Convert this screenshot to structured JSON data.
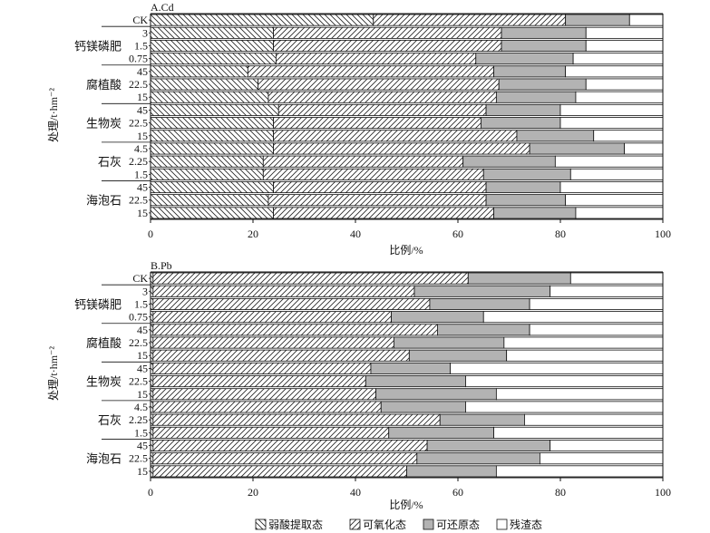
{
  "chart_data": {
    "type": "bar",
    "orientation": "horizontal",
    "stacked": true,
    "x_ticks": [
      0,
      20,
      40,
      60,
      80,
      100
    ],
    "xlim": [
      0,
      100
    ],
    "xlabel": "比例/%",
    "ylabel": "处理/t·hm⁻²",
    "legend_position": "bottom",
    "components": [
      {
        "name": "弱酸提取态",
        "fill": "hatch-back",
        "color": "#ffffff"
      },
      {
        "name": "可氧化态",
        "fill": "hatch-fwd",
        "color": "#ffffff"
      },
      {
        "name": "可还原态",
        "fill": "solid",
        "color": "#b3b3b3"
      },
      {
        "name": "残渣态",
        "fill": "solid",
        "color": "#ffffff"
      }
    ],
    "categories": [
      "CK",
      "3",
      "1.5",
      "0.75",
      "45",
      "22.5",
      "15",
      "45",
      "22.5",
      "15",
      "4.5",
      "2.25",
      "1.5",
      "45",
      "22.5",
      "15"
    ],
    "groups": [
      {
        "label": "钙镁磷肥",
        "start": 1,
        "end": 3
      },
      {
        "label": "腐植酸",
        "start": 4,
        "end": 6
      },
      {
        "label": "生物炭",
        "start": 7,
        "end": 9
      },
      {
        "label": "石灰",
        "start": 10,
        "end": 12
      },
      {
        "label": "海泡石",
        "start": 13,
        "end": 15
      }
    ],
    "panels": [
      {
        "title": "A.Cd",
        "cumulative_boundaries": [
          [
            43.5,
            81,
            93.5
          ],
          [
            24,
            68.5,
            85
          ],
          [
            24,
            68.5,
            85
          ],
          [
            24.5,
            63.5,
            82.5
          ],
          [
            19,
            67,
            81
          ],
          [
            21,
            68,
            85
          ],
          [
            23,
            67.5,
            83
          ],
          [
            25,
            65.5,
            80
          ],
          [
            24,
            64.5,
            80
          ],
          [
            24,
            71.5,
            86.5
          ],
          [
            24,
            74,
            92.5
          ],
          [
            22,
            61,
            79
          ],
          [
            22,
            65,
            82
          ],
          [
            24,
            65.5,
            80
          ],
          [
            23,
            65.5,
            81
          ],
          [
            24,
            67,
            83
          ]
        ]
      },
      {
        "title": "B.Pb",
        "cumulative_boundaries": [
          [
            0.5,
            62,
            82
          ],
          [
            0.5,
            51.5,
            78
          ],
          [
            0.5,
            54.5,
            74
          ],
          [
            0.5,
            47,
            65
          ],
          [
            0.5,
            56,
            74
          ],
          [
            0.5,
            47.5,
            69
          ],
          [
            0.5,
            50.5,
            69.5
          ],
          [
            0.5,
            43,
            58.5
          ],
          [
            0.5,
            42,
            61.5
          ],
          [
            0.5,
            44,
            67.5
          ],
          [
            0.5,
            45,
            61.5
          ],
          [
            0.5,
            56.5,
            73
          ],
          [
            0.5,
            46.5,
            67
          ],
          [
            0.5,
            54,
            78
          ],
          [
            0.5,
            52,
            76
          ],
          [
            0.5,
            50,
            67.5
          ]
        ]
      }
    ]
  }
}
